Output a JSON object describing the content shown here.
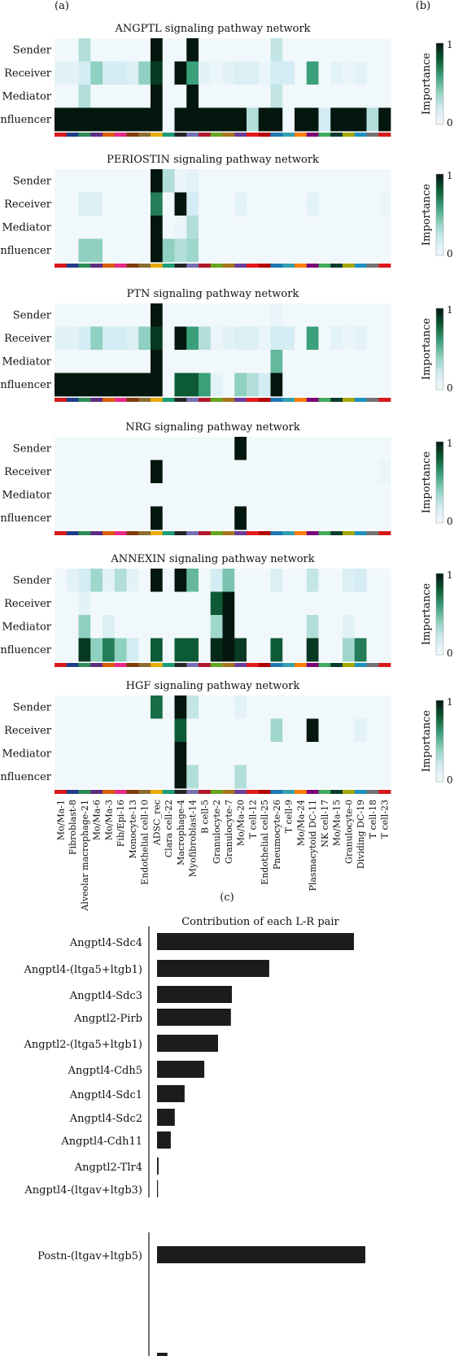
{
  "panel_labels": {
    "a": "(a)",
    "b": "(b)",
    "c": "(c)"
  },
  "colors": {
    "scale": [
      "#f1f8fb",
      "#d4ecf3",
      "#8fd0c0",
      "#3aa07a",
      "#0d5a36",
      "#03170e"
    ],
    "group_colors": [
      "#d7191c",
      "#1f3d8a",
      "#2e8b57",
      "#5a2d82",
      "#d95f02",
      "#e7298a",
      "#7f3b08",
      "#8c6d31",
      "#e6ab02",
      "#1b9e77",
      "#252525",
      "#7570b3",
      "#b2182b",
      "#66a61e",
      "#a6761d",
      "#6a3d9a",
      "#e31a1c",
      "#b30000",
      "#1f78b4",
      "#33a0b0",
      "#ff7f00",
      "#7a0177",
      "#41ab5d",
      "#0b3d2e",
      "#a6a600",
      "#1d91c0",
      "#737373"
    ],
    "bar": "#1c1c1c"
  },
  "chart_data": [
    {
      "type": "heatmap",
      "title": "ANGPTL signaling pathway network",
      "rows": [
        "Sender",
        "Receiver",
        "Mediator",
        "Influencer"
      ],
      "columns": [
        "Mo/Ma-1",
        "Fibroblast-8",
        "Alveolar macrophage-21",
        "Mo/Ma-6",
        "Mo/Ma-3",
        "Fib/Epi-16",
        "Monocyte-13",
        "Endothelial cell-10",
        "ADSC_rec",
        "Clara cell-22",
        "Macrophage-4",
        "Myofibroblast-14",
        "B cell-5",
        "Granulocyte-2",
        "Granulocyte-7",
        "Mo/Ma-20",
        "T cell-12",
        "Endothelial cell-25",
        "Pneumocyte-26",
        "T cell-9",
        "Mo/Ma-24",
        "Plasmacytoid DC-11",
        "NK cell-17",
        "Mo/Ma-15",
        "Granulocyte-0",
        "Dividing DC-19",
        "T cell-18",
        "T cell-23"
      ],
      "values": [
        [
          0,
          0,
          0.3,
          0,
          0,
          0,
          0,
          0,
          1,
          0,
          0,
          1,
          0,
          0,
          0,
          0,
          0,
          0,
          0.25,
          0,
          0,
          0,
          0,
          0,
          0,
          0,
          0,
          0
        ],
        [
          0.1,
          0.1,
          0.2,
          0.4,
          0.2,
          0.2,
          0.15,
          0.4,
          0.9,
          0,
          1,
          0.6,
          0.1,
          0.05,
          0.1,
          0.15,
          0.15,
          0.05,
          0.2,
          0.2,
          0,
          0.6,
          0,
          0.1,
          0.05,
          0.1,
          0,
          0
        ],
        [
          0,
          0,
          0.3,
          0,
          0,
          0,
          0,
          0,
          1,
          0,
          0,
          1,
          0,
          0,
          0,
          0,
          0,
          0,
          0.25,
          0,
          0,
          0,
          0,
          0,
          0,
          0,
          0,
          0
        ],
        [
          1,
          1,
          1,
          1,
          1,
          1,
          1,
          1,
          1,
          0,
          1,
          1,
          1,
          1,
          1,
          1,
          0.3,
          1,
          1,
          0,
          1,
          1,
          0.2,
          1,
          1,
          1,
          0.3,
          1
        ]
      ],
      "colorbar": {
        "label": "Importance",
        "min": "0",
        "max": "1"
      }
    },
    {
      "type": "heatmap",
      "title": "PERIOSTIN signaling pathway network",
      "rows": [
        "Sender",
        "Receiver",
        "Mediator",
        "Influencer"
      ],
      "columns": [
        "Mo/Ma-1",
        "Fibroblast-8",
        "Alveolar macrophage-21",
        "Mo/Ma-6",
        "Mo/Ma-3",
        "Fib/Epi-16",
        "Monocyte-13",
        "Endothelial cell-10",
        "ADSC_rec",
        "Clara cell-22",
        "Macrophage-4",
        "Myofibroblast-14",
        "B cell-5",
        "Granulocyte-2",
        "Granulocyte-7",
        "Mo/Ma-20",
        "T cell-12",
        "Endothelial cell-25",
        "Pneumocyte-26",
        "T cell-9",
        "Mo/Ma-24",
        "Plasmacytoid DC-11",
        "NK cell-17",
        "Mo/Ma-15",
        "Granulocyte-0",
        "Dividing DC-19",
        "T cell-18",
        "T cell-23"
      ],
      "values": [
        [
          0,
          0,
          0,
          0,
          0,
          0,
          0,
          0,
          1,
          0.3,
          0.05,
          0.1,
          0,
          0,
          0,
          0,
          0,
          0,
          0,
          0,
          0,
          0,
          0,
          0,
          0,
          0,
          0,
          0
        ],
        [
          0,
          0,
          0.15,
          0.15,
          0,
          0,
          0,
          0,
          0.7,
          0,
          1,
          0.2,
          0,
          0,
          0,
          0.1,
          0,
          0,
          0,
          0,
          0,
          0.1,
          0,
          0,
          0,
          0,
          0,
          0.05
        ],
        [
          0,
          0,
          0,
          0,
          0,
          0,
          0,
          0,
          1,
          0,
          0.05,
          0.3,
          0,
          0,
          0,
          0,
          0,
          0,
          0,
          0,
          0,
          0,
          0,
          0,
          0,
          0,
          0,
          0
        ],
        [
          0,
          0,
          0.4,
          0.4,
          0,
          0,
          0,
          0,
          1,
          0.4,
          0.3,
          0.35,
          0,
          0,
          0,
          0,
          0,
          0,
          0,
          0,
          0,
          0,
          0,
          0,
          0,
          0,
          0,
          0
        ]
      ],
      "colorbar": {
        "label": "Importance",
        "min": "0",
        "max": "1"
      }
    },
    {
      "type": "heatmap",
      "title": "PTN signaling pathway network",
      "rows": [
        "Sender",
        "Receiver",
        "Mediator",
        "Influencer"
      ],
      "columns": [
        "Mo/Ma-1",
        "Fibroblast-8",
        "Alveolar macrophage-21",
        "Mo/Ma-6",
        "Mo/Ma-3",
        "Fib/Epi-16",
        "Monocyte-13",
        "Endothelial cell-10",
        "ADSC_rec",
        "Clara cell-22",
        "Macrophage-4",
        "Myofibroblast-14",
        "B cell-5",
        "Granulocyte-2",
        "Granulocyte-7",
        "Mo/Ma-20",
        "T cell-12",
        "Endothelial cell-25",
        "Pneumocyte-26",
        "T cell-9",
        "Mo/Ma-24",
        "Plasmacytoid DC-11",
        "NK cell-17",
        "Mo/Ma-15",
        "Granulocyte-0",
        "Dividing DC-19",
        "T cell-18",
        "T cell-23"
      ],
      "values": [
        [
          0,
          0,
          0,
          0,
          0,
          0,
          0,
          0,
          1,
          0,
          0,
          0,
          0,
          0,
          0,
          0,
          0,
          0,
          0.05,
          0,
          0,
          0,
          0,
          0,
          0,
          0,
          0,
          0
        ],
        [
          0.1,
          0.1,
          0.2,
          0.4,
          0.2,
          0.2,
          0.15,
          0.4,
          0.9,
          0,
          1,
          0.6,
          0.3,
          0.05,
          0.1,
          0.15,
          0.15,
          0.05,
          0.2,
          0.2,
          0,
          0.6,
          0,
          0.1,
          0.05,
          0.1,
          0,
          0
        ],
        [
          0,
          0,
          0,
          0,
          0,
          0,
          0,
          0,
          1,
          0,
          0,
          0,
          0,
          0,
          0,
          0,
          0,
          0,
          0.5,
          0,
          0,
          0,
          0,
          0,
          0,
          0,
          0,
          0
        ],
        [
          1,
          1,
          1,
          1,
          1,
          1,
          1,
          1,
          1,
          0,
          0.8,
          0.8,
          0.6,
          0.1,
          0,
          0.4,
          0.3,
          0.2,
          1,
          0,
          0,
          0,
          0,
          0,
          0,
          0,
          0,
          0
        ]
      ],
      "colorbar": {
        "label": "Importance",
        "min": "0",
        "max": "1"
      }
    },
    {
      "type": "heatmap",
      "title": "NRG signaling pathway network",
      "rows": [
        "Sender",
        "Receiver",
        "Mediator",
        "Influencer"
      ],
      "columns": [
        "Mo/Ma-1",
        "Fibroblast-8",
        "Alveolar macrophage-21",
        "Mo/Ma-6",
        "Mo/Ma-3",
        "Fib/Epi-16",
        "Monocyte-13",
        "Endothelial cell-10",
        "ADSC_rec",
        "Clara cell-22",
        "Macrophage-4",
        "Myofibroblast-14",
        "B cell-5",
        "Granulocyte-2",
        "Granulocyte-7",
        "Mo/Ma-20",
        "T cell-12",
        "Endothelial cell-25",
        "Pneumocyte-26",
        "T cell-9",
        "Mo/Ma-24",
        "Plasmacytoid DC-11",
        "NK cell-17",
        "Mo/Ma-15",
        "Granulocyte-0",
        "Dividing DC-19",
        "T cell-18",
        "T cell-23"
      ],
      "values": [
        [
          0,
          0,
          0,
          0,
          0,
          0,
          0,
          0,
          0,
          0,
          0,
          0,
          0,
          0,
          0,
          1,
          0,
          0,
          0,
          0,
          0,
          0,
          0,
          0,
          0,
          0,
          0,
          0
        ],
        [
          0,
          0,
          0,
          0,
          0,
          0,
          0,
          0,
          1,
          0,
          0,
          0,
          0,
          0,
          0,
          0,
          0,
          0,
          0,
          0,
          0,
          0,
          0,
          0,
          0,
          0,
          0,
          0.05
        ],
        [
          0,
          0,
          0,
          0,
          0,
          0,
          0,
          0,
          0,
          0,
          0,
          0,
          0,
          0,
          0,
          0,
          0,
          0,
          0,
          0,
          0,
          0,
          0,
          0,
          0,
          0,
          0,
          0
        ],
        [
          0,
          0,
          0,
          0,
          0,
          0,
          0,
          0,
          1,
          0,
          0,
          0,
          0,
          0,
          0,
          1,
          0,
          0,
          0,
          0,
          0,
          0,
          0,
          0,
          0,
          0,
          0,
          0
        ]
      ],
      "colorbar": {
        "label": "Importance",
        "min": "0",
        "max": "1"
      }
    },
    {
      "type": "heatmap",
      "title": "ANNEXIN signaling pathway network",
      "rows": [
        "Sender",
        "Receiver",
        "Mediator",
        "Influencer"
      ],
      "columns": [
        "Mo/Ma-1",
        "Fibroblast-8",
        "Alveolar macrophage-21",
        "Mo/Ma-6",
        "Mo/Ma-3",
        "Fib/Epi-16",
        "Monocyte-13",
        "Endothelial cell-10",
        "ADSC_rec",
        "Clara cell-22",
        "Macrophage-4",
        "Myofibroblast-14",
        "B cell-5",
        "Granulocyte-2",
        "Granulocyte-7",
        "Mo/Ma-20",
        "T cell-12",
        "Endothelial cell-25",
        "Pneumocyte-26",
        "T cell-9",
        "Mo/Ma-24",
        "Plasmacytoid DC-11",
        "NK cell-17",
        "Mo/Ma-15",
        "Granulocyte-0",
        "Dividing DC-19",
        "T cell-18",
        "T cell-23"
      ],
      "values": [
        [
          0,
          0.1,
          0.2,
          0.35,
          0.1,
          0.3,
          0.1,
          0,
          1,
          0,
          1,
          0.5,
          0,
          0.2,
          0.45,
          0,
          0,
          0,
          0.15,
          0,
          0,
          0.25,
          0,
          0,
          0.15,
          0.2,
          0,
          0
        ],
        [
          0,
          0,
          0.1,
          0,
          0,
          0,
          0,
          0,
          0,
          0,
          0,
          0,
          0,
          0.8,
          1,
          0,
          0,
          0,
          0,
          0,
          0,
          0,
          0,
          0,
          0,
          0,
          0,
          0
        ],
        [
          0,
          0,
          0.4,
          0,
          0.15,
          0,
          0,
          0,
          0,
          0,
          0,
          0,
          0,
          0.35,
          1,
          0,
          0,
          0,
          0,
          0,
          0,
          0.3,
          0,
          0,
          0.1,
          0,
          0,
          0
        ],
        [
          0,
          0,
          0.9,
          0.4,
          0.7,
          0.4,
          0.2,
          0,
          0.8,
          0,
          0.8,
          0.8,
          0,
          0.95,
          1,
          0.9,
          0,
          0,
          0.8,
          0,
          0,
          0.9,
          0,
          0,
          0.35,
          0.7,
          0,
          0
        ]
      ],
      "colorbar": {
        "label": "Importance",
        "min": "0",
        "max": "1"
      }
    },
    {
      "type": "heatmap",
      "title": "HGF signaling pathway network",
      "rows": [
        "Sender",
        "Receiver",
        "Mediator",
        "Influencer"
      ],
      "columns": [
        "Mo/Ma-1",
        "Fibroblast-8",
        "Alveolar macrophage-21",
        "Mo/Ma-6",
        "Mo/Ma-3",
        "Fib/Epi-16",
        "Monocyte-13",
        "Endothelial cell-10",
        "ADSC_rec",
        "Clara cell-22",
        "Macrophage-4",
        "Myofibroblast-14",
        "B cell-5",
        "Granulocyte-2",
        "Granulocyte-7",
        "Mo/Ma-20",
        "T cell-12",
        "Endothelial cell-25",
        "Pneumocyte-26",
        "T cell-9",
        "Mo/Ma-24",
        "Plasmacytoid DC-11",
        "NK cell-17",
        "Mo/Ma-15",
        "Granulocyte-0",
        "Dividing DC-19",
        "T cell-18",
        "T cell-23"
      ],
      "values": [
        [
          0,
          0,
          0,
          0,
          0,
          0,
          0,
          0,
          0.75,
          0,
          1,
          0.25,
          0,
          0,
          0,
          0.1,
          0,
          0,
          0,
          0,
          0,
          0,
          0,
          0,
          0,
          0,
          0,
          0
        ],
        [
          0,
          0,
          0,
          0,
          0,
          0,
          0,
          0,
          0,
          0,
          0.8,
          0,
          0,
          0,
          0,
          0,
          0,
          0,
          0.35,
          0,
          0,
          1,
          0,
          0,
          0,
          0.1,
          0,
          0
        ],
        [
          0,
          0,
          0,
          0,
          0,
          0,
          0,
          0,
          0,
          0,
          1,
          0,
          0,
          0,
          0,
          0,
          0,
          0,
          0,
          0,
          0,
          0,
          0,
          0,
          0,
          0,
          0,
          0
        ],
        [
          0,
          0,
          0,
          0,
          0,
          0,
          0,
          0,
          0,
          0,
          1,
          0.3,
          0,
          0,
          0,
          0.3,
          0,
          0,
          0,
          0,
          0,
          0,
          0,
          0,
          0,
          0,
          0,
          0
        ]
      ],
      "colorbar": {
        "label": "Importance",
        "min": "0",
        "max": "1"
      }
    },
    {
      "type": "bar",
      "orientation": "horizontal",
      "title": "Contribution of each L-R pair",
      "categories": [
        "Angptl4-Sdc4",
        "Angptl4-(ltga5+ltgb1)",
        "Angptl4-Sdc3",
        "Angptl2-Pirb",
        "Angptl2-(ltga5+ltgb1)",
        "Angptl4-Cdh5",
        "Angptl4-Sdc1",
        "Angptl4-Sdc2",
        "Angptl4-Cdh11",
        "Angptl2-Tlr4",
        "Angptl4-(ltgav+ltgb3)"
      ],
      "values": [
        1.0,
        0.57,
        0.38,
        0.375,
        0.31,
        0.24,
        0.14,
        0.09,
        0.07,
        0.008,
        0.005
      ],
      "xlim": [
        0,
        1.05
      ]
    },
    {
      "type": "bar",
      "orientation": "horizontal",
      "title": "",
      "categories": [
        "Postn-(ltgav+ltgb5)",
        ""
      ],
      "values": [
        1.0,
        0.05
      ],
      "xlim": [
        0,
        1.05
      ]
    }
  ]
}
